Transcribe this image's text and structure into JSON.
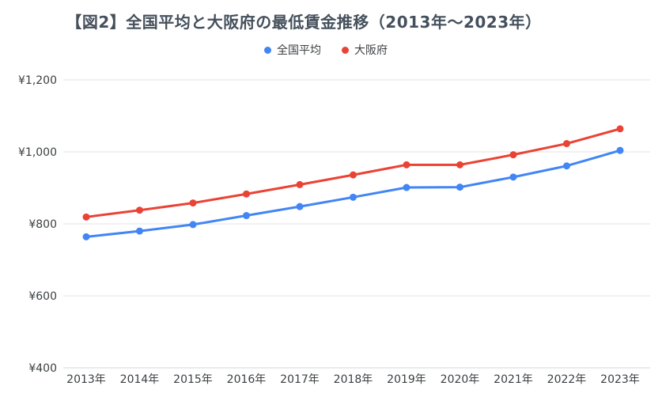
{
  "chart": {
    "title": "【図2】全国平均と大阪府の最低賃金推移（2013年〜2023年）"
  },
  "chart_data": {
    "type": "line",
    "title": "【図2】全国平均と大阪府の最低賃金推移（2013年〜2023年）",
    "categories": [
      "2013年",
      "2014年",
      "2015年",
      "2016年",
      "2017年",
      "2018年",
      "2019年",
      "2020年",
      "2021年",
      "2022年",
      "2023年"
    ],
    "series": [
      {
        "id": "national-average",
        "name": "全国平均",
        "color": "#4285F4",
        "values": [
          764,
          780,
          798,
          823,
          848,
          874,
          901,
          902,
          930,
          961,
          1004
        ]
      },
      {
        "id": "osaka",
        "name": "大阪府",
        "color": "#EA4335",
        "values": [
          819,
          838,
          858,
          883,
          909,
          936,
          964,
          964,
          992,
          1023,
          1064
        ]
      }
    ],
    "xlabel": "",
    "ylabel": "",
    "ylim": [
      400,
      1200
    ],
    "y_ticks": [
      {
        "value": 400,
        "label": "¥400"
      },
      {
        "value": 600,
        "label": "¥600"
      },
      {
        "value": 800,
        "label": "¥800"
      },
      {
        "value": 1000,
        "label": "¥1,000"
      },
      {
        "value": 1200,
        "label": "¥1,200"
      }
    ],
    "grid": true,
    "legend_position": "top"
  },
  "colors": {
    "background": "#ffffff",
    "title_text": "#45505c",
    "axis_text": "#3c4043",
    "gridline": "#e3e3e3",
    "baseline": "#d6d6d6"
  }
}
